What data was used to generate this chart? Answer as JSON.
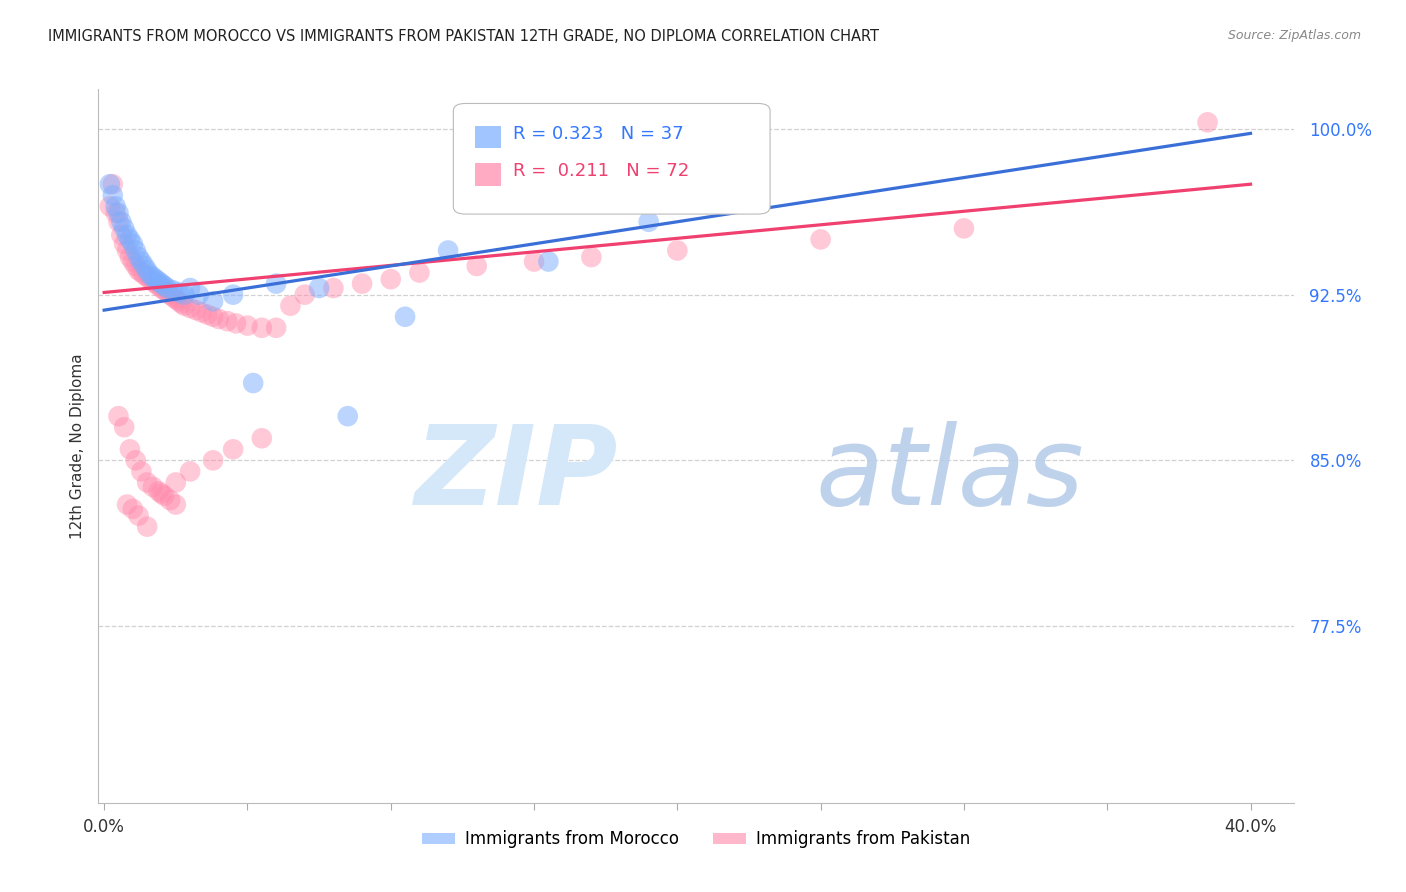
{
  "title": "IMMIGRANTS FROM MOROCCO VS IMMIGRANTS FROM PAKISTAN 12TH GRADE, NO DIPLOMA CORRELATION CHART",
  "source_text": "Source: ZipAtlas.com",
  "ylabel": "12th Grade, No Diploma",
  "xlim": [
    -0.002,
    0.415
  ],
  "ylim": [
    0.695,
    1.018
  ],
  "xticks": [
    0.0,
    0.05,
    0.1,
    0.15,
    0.2,
    0.25,
    0.3,
    0.35,
    0.4
  ],
  "xticklabels": [
    "0.0%",
    "",
    "",
    "",
    "",
    "",
    "",
    "",
    "40.0%"
  ],
  "yticks": [
    0.775,
    0.85,
    0.925,
    1.0
  ],
  "yticklabels": [
    "77.5%",
    "85.0%",
    "92.5%",
    "100.0%"
  ],
  "morocco_fill": "#7aadff",
  "pakistan_fill": "#ff88aa",
  "morocco_line_color": "#3a6fd8",
  "pakistan_line_color": "#f04070",
  "morocco_R": 0.323,
  "morocco_N": 37,
  "pakistan_R": 0.211,
  "pakistan_N": 72,
  "grid_color": "#cccccc",
  "legend_label_morocco": "Immigrants from Morocco",
  "legend_label_pakistan": "Immigrants from Pakistan",
  "morocco_line_x": [
    0.0,
    0.4
  ],
  "morocco_line_y": [
    0.918,
    0.998
  ],
  "pakistan_line_x": [
    0.0,
    0.4
  ],
  "pakistan_line_y": [
    0.926,
    0.975
  ],
  "morocco_x": [
    0.002,
    0.003,
    0.004,
    0.005,
    0.006,
    0.007,
    0.008,
    0.009,
    0.01,
    0.011,
    0.012,
    0.013,
    0.014,
    0.015,
    0.016,
    0.017,
    0.018,
    0.019,
    0.02,
    0.021,
    0.022,
    0.024,
    0.026,
    0.028,
    0.03,
    0.033,
    0.038,
    0.045,
    0.052,
    0.06,
    0.075,
    0.085,
    0.105,
    0.12,
    0.155,
    0.19,
    0.22
  ],
  "morocco_y": [
    0.975,
    0.97,
    0.965,
    0.962,
    0.958,
    0.955,
    0.952,
    0.95,
    0.948,
    0.945,
    0.942,
    0.94,
    0.938,
    0.936,
    0.934,
    0.933,
    0.932,
    0.931,
    0.93,
    0.929,
    0.928,
    0.927,
    0.926,
    0.925,
    0.928,
    0.925,
    0.922,
    0.925,
    0.885,
    0.93,
    0.928,
    0.87,
    0.915,
    0.945,
    0.94,
    0.958,
    0.975
  ],
  "pakistan_x": [
    0.002,
    0.003,
    0.004,
    0.005,
    0.006,
    0.007,
    0.008,
    0.009,
    0.01,
    0.011,
    0.012,
    0.013,
    0.014,
    0.015,
    0.016,
    0.017,
    0.018,
    0.019,
    0.02,
    0.021,
    0.022,
    0.023,
    0.024,
    0.025,
    0.026,
    0.027,
    0.028,
    0.03,
    0.032,
    0.034,
    0.036,
    0.038,
    0.04,
    0.043,
    0.046,
    0.05,
    0.055,
    0.06,
    0.065,
    0.07,
    0.08,
    0.09,
    0.1,
    0.11,
    0.13,
    0.15,
    0.17,
    0.2,
    0.25,
    0.3,
    0.005,
    0.007,
    0.009,
    0.011,
    0.013,
    0.015,
    0.017,
    0.019,
    0.021,
    0.023,
    0.025,
    0.015,
    0.012,
    0.01,
    0.008,
    0.02,
    0.025,
    0.03,
    0.038,
    0.045,
    0.055,
    0.385
  ],
  "pakistan_y": [
    0.965,
    0.975,
    0.962,
    0.958,
    0.952,
    0.948,
    0.945,
    0.942,
    0.94,
    0.938,
    0.936,
    0.935,
    0.934,
    0.933,
    0.932,
    0.931,
    0.93,
    0.929,
    0.928,
    0.927,
    0.926,
    0.925,
    0.924,
    0.923,
    0.922,
    0.921,
    0.92,
    0.919,
    0.918,
    0.917,
    0.916,
    0.915,
    0.914,
    0.913,
    0.912,
    0.911,
    0.91,
    0.91,
    0.92,
    0.925,
    0.928,
    0.93,
    0.932,
    0.935,
    0.938,
    0.94,
    0.942,
    0.945,
    0.95,
    0.955,
    0.87,
    0.865,
    0.855,
    0.85,
    0.845,
    0.84,
    0.838,
    0.836,
    0.834,
    0.832,
    0.83,
    0.82,
    0.825,
    0.828,
    0.83,
    0.835,
    0.84,
    0.845,
    0.85,
    0.855,
    0.86,
    1.003
  ]
}
